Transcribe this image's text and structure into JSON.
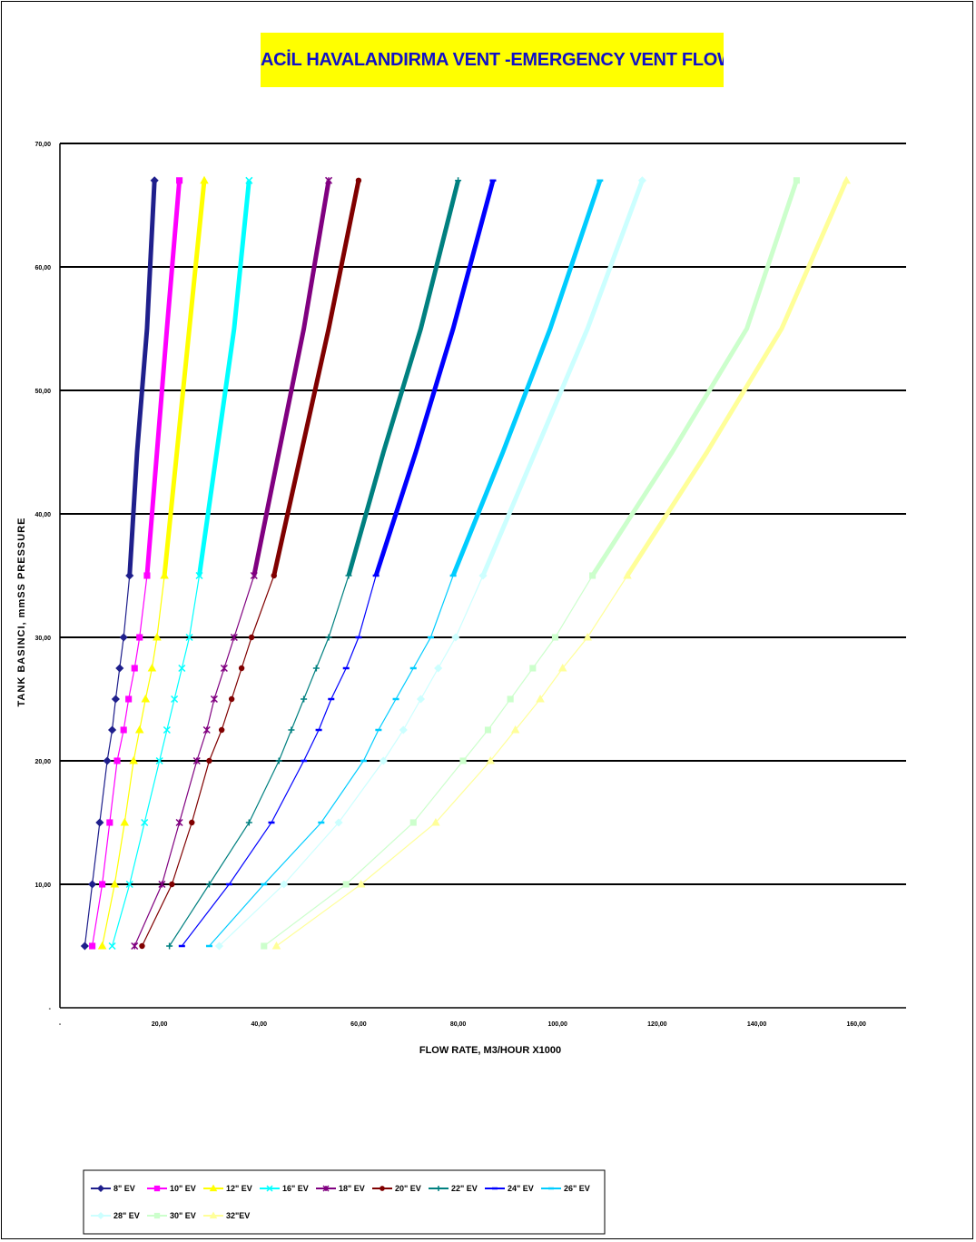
{
  "title": "ACİL HAVALANDIRMA VENT  -EMERGENCY VENT FLOW DİAGRAM",
  "chart_data": {
    "type": "line",
    "title": "ACİL HAVALANDIRMA VENT  -EMERGENCY VENT FLOW DİAGRAM",
    "xlabel": "FLOW RATE, M3/HOUR X1000",
    "ylabel": "TANK BASINCI, mmSS PRESSURE",
    "xlim": [
      0,
      170
    ],
    "ylim": [
      0,
      70
    ],
    "x_tick_values": [
      0,
      20,
      40,
      60,
      80,
      100,
      120,
      140,
      160
    ],
    "x_tick_labels": [
      "-",
      "20,00",
      "40,00",
      "60,00",
      "80,00",
      "100,00",
      "120,00",
      "140,00",
      "160,00"
    ],
    "y_tick_values": [
      0,
      10,
      20,
      30,
      40,
      50,
      60,
      70
    ],
    "y_tick_labels": [
      "-",
      "10,00",
      "20,00",
      "30,00",
      "40,00",
      "50,00",
      "60,00",
      "70,00"
    ],
    "grid": "horizontal",
    "legend_position": "bottom",
    "series": [
      {
        "name": "8\" EV",
        "color": "#1f1f8c",
        "marker": "diamond",
        "x": [
          5,
          6.5,
          8,
          9.5,
          10.5,
          11.2,
          12,
          12.8,
          14,
          15.5,
          17.5,
          19
        ],
        "y": [
          5,
          10,
          15,
          20,
          22.5,
          25,
          27.5,
          30,
          35,
          45,
          55,
          67
        ]
      },
      {
        "name": "10\" EV",
        "color": "#ff00ff",
        "marker": "square",
        "x": [
          6.5,
          8.5,
          10,
          11.5,
          12.8,
          13.8,
          15,
          16,
          17.5,
          19.5,
          21.5,
          24
        ],
        "y": [
          5,
          10,
          15,
          20,
          22.5,
          25,
          27.5,
          30,
          35,
          45,
          55,
          67
        ]
      },
      {
        "name": "12\" EV",
        "color": "#ffff00",
        "marker": "triangle",
        "x": [
          8.5,
          11,
          13,
          14.8,
          16,
          17.2,
          18.5,
          19.5,
          21,
          23.5,
          26,
          29
        ],
        "y": [
          5,
          10,
          15,
          20,
          22.5,
          25,
          27.5,
          30,
          35,
          45,
          55,
          67
        ]
      },
      {
        "name": "16\" EV",
        "color": "#00ffff",
        "marker": "x",
        "x": [
          10.5,
          14,
          17,
          20,
          21.5,
          23,
          24.5,
          26,
          28,
          31.5,
          35,
          38
        ],
        "y": [
          5,
          10,
          15,
          20,
          22.5,
          25,
          27.5,
          30,
          35,
          45,
          55,
          67
        ]
      },
      {
        "name": "18\" EV",
        "color": "#800080",
        "marker": "star",
        "x": [
          15,
          20.5,
          24,
          27.5,
          29.5,
          31,
          33,
          35,
          39,
          44,
          49,
          54
        ],
        "y": [
          5,
          10,
          15,
          20,
          22.5,
          25,
          27.5,
          30,
          35,
          45,
          55,
          67
        ]
      },
      {
        "name": "20\" EV",
        "color": "#800000",
        "marker": "circle",
        "x": [
          16.5,
          22.5,
          26.5,
          30,
          32.5,
          34.5,
          36.5,
          38.5,
          43,
          48.5,
          54,
          60
        ],
        "y": [
          5,
          10,
          15,
          20,
          22.5,
          25,
          27.5,
          30,
          35,
          45,
          55,
          67
        ]
      },
      {
        "name": "22\" EV",
        "color": "#008080",
        "marker": "plus",
        "x": [
          22,
          30,
          38,
          44,
          46.5,
          49,
          51.5,
          54,
          58,
          65,
          72.5,
          80
        ],
        "y": [
          5,
          10,
          15,
          20,
          22.5,
          25,
          27.5,
          30,
          35,
          45,
          55,
          67
        ]
      },
      {
        "name": "24\" EV",
        "color": "#0000ff",
        "marker": "dash",
        "x": [
          24.5,
          34,
          42.5,
          49,
          52,
          54.5,
          57.5,
          60,
          63.5,
          71.5,
          79,
          87
        ],
        "y": [
          5,
          10,
          15,
          20,
          22.5,
          25,
          27.5,
          30,
          35,
          45,
          55,
          67
        ]
      },
      {
        "name": "26\" EV",
        "color": "#00ccff",
        "marker": "dash",
        "x": [
          30,
          41,
          52.5,
          61,
          64,
          67.5,
          71,
          74.5,
          79,
          89,
          98.5,
          108.5
        ],
        "y": [
          5,
          10,
          15,
          20,
          22.5,
          25,
          27.5,
          30,
          35,
          45,
          55,
          67
        ]
      },
      {
        "name": "28\" EV",
        "color": "#ccffff",
        "marker": "diamond",
        "x": [
          32,
          45,
          56,
          65,
          69,
          72.5,
          76,
          79.5,
          85,
          95.5,
          106,
          117
        ],
        "y": [
          5,
          10,
          15,
          20,
          22.5,
          25,
          27.5,
          30,
          35,
          45,
          55,
          67
        ]
      },
      {
        "name": "30\" EV",
        "color": "#ccffcc",
        "marker": "square",
        "x": [
          41,
          57.5,
          71,
          81,
          86,
          90.5,
          95,
          99.5,
          107,
          123,
          138,
          148
        ],
        "y": [
          5,
          10,
          15,
          20,
          22.5,
          25,
          27.5,
          30,
          35,
          45,
          55,
          67
        ]
      },
      {
        "name": "32\"EV",
        "color": "#ffff99",
        "marker": "triangle",
        "x": [
          43.5,
          60.5,
          75.5,
          86.5,
          91.5,
          96.5,
          101,
          106,
          114,
          130,
          145,
          158
        ],
        "y": [
          5,
          10,
          15,
          20,
          22.5,
          25,
          27.5,
          30,
          35,
          45,
          55,
          67
        ]
      }
    ]
  }
}
